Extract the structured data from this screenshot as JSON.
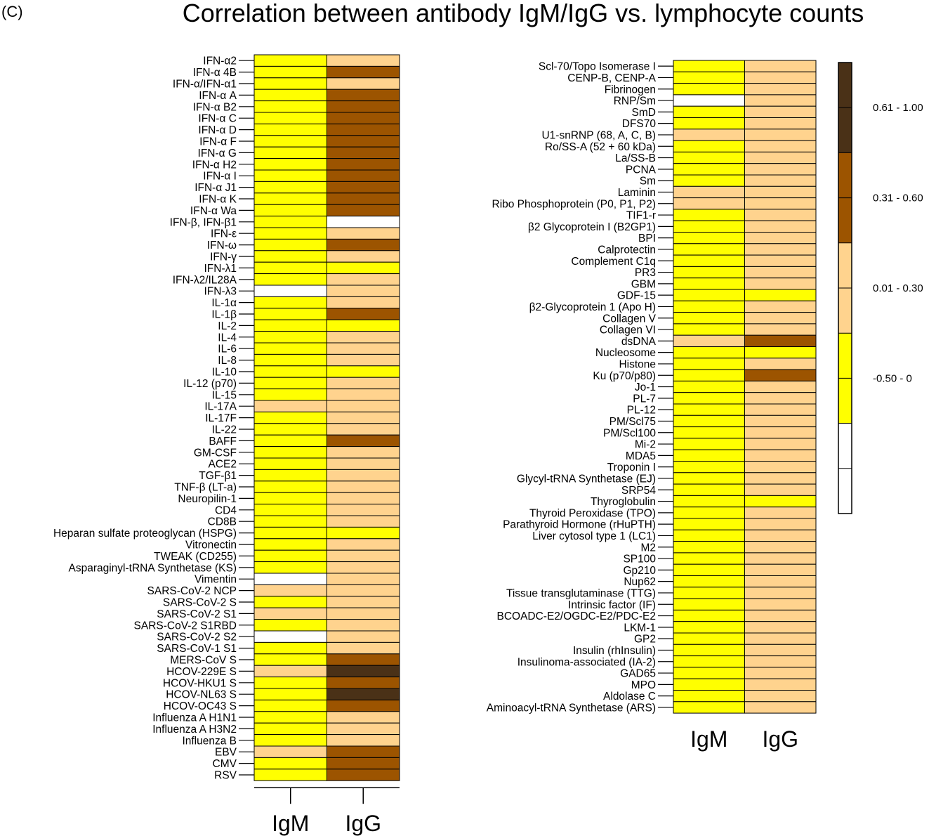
{
  "panel_label": "(C)",
  "title": "Correlation between antibody IgM/IgG vs. lymphocyte counts",
  "colors": {
    "neg": "#ffff00",
    "low": "#ffd38e",
    "mid": "#9c5400",
    "high": "#4a3117",
    "none": "#ffffff"
  },
  "chart_data": [
    {
      "type": "heatmap",
      "columns": [
        "IgM",
        "IgG"
      ],
      "categories": {
        "neg": "-0.50 - 0",
        "low": "0.01 - 0.30",
        "mid": "0.31 - 0.60",
        "high": "0.61 - 1.00",
        "none": ""
      },
      "rows": [
        {
          "label": "IFN-α2",
          "IgM": "neg",
          "IgG": "low"
        },
        {
          "label": "IFN-α 4B",
          "IgM": "neg",
          "IgG": "mid"
        },
        {
          "label": "IFN-α/IFN-α1",
          "IgM": "neg",
          "IgG": "low"
        },
        {
          "label": "IFN-α A",
          "IgM": "neg",
          "IgG": "mid"
        },
        {
          "label": "IFN-α B2",
          "IgM": "neg",
          "IgG": "mid"
        },
        {
          "label": "IFN-α C",
          "IgM": "neg",
          "IgG": "mid"
        },
        {
          "label": "IFN-α D",
          "IgM": "neg",
          "IgG": "mid"
        },
        {
          "label": "IFN-α F",
          "IgM": "neg",
          "IgG": "mid"
        },
        {
          "label": "IFN-α G",
          "IgM": "neg",
          "IgG": "mid"
        },
        {
          "label": "IFN-α H2",
          "IgM": "neg",
          "IgG": "mid"
        },
        {
          "label": "IFN-α I",
          "IgM": "neg",
          "IgG": "mid"
        },
        {
          "label": "IFN-α J1",
          "IgM": "neg",
          "IgG": "mid"
        },
        {
          "label": "IFN-α K",
          "IgM": "neg",
          "IgG": "mid"
        },
        {
          "label": "IFN-α Wa",
          "IgM": "neg",
          "IgG": "mid"
        },
        {
          "label": "IFN-β, IFN-β1",
          "IgM": "neg",
          "IgG": "none"
        },
        {
          "label": "IFN-ε",
          "IgM": "neg",
          "IgG": "low"
        },
        {
          "label": "IFN-ω",
          "IgM": "neg",
          "IgG": "mid"
        },
        {
          "label": "IFN-γ",
          "IgM": "neg",
          "IgG": "low"
        },
        {
          "label": "IFN-λ1",
          "IgM": "neg",
          "IgG": "neg"
        },
        {
          "label": "IFN-λ2/IL28A",
          "IgM": "neg",
          "IgG": "low"
        },
        {
          "label": "IFN-λ3",
          "IgM": "none",
          "IgG": "low"
        },
        {
          "label": "IL-1α",
          "IgM": "neg",
          "IgG": "low"
        },
        {
          "label": "IL-1β",
          "IgM": "neg",
          "IgG": "mid"
        },
        {
          "label": "IL-2",
          "IgM": "neg",
          "IgG": "neg"
        },
        {
          "label": "IL-4",
          "IgM": "neg",
          "IgG": "low"
        },
        {
          "label": "IL-6",
          "IgM": "neg",
          "IgG": "low"
        },
        {
          "label": "IL-8",
          "IgM": "neg",
          "IgG": "low"
        },
        {
          "label": "IL-10",
          "IgM": "neg",
          "IgG": "neg"
        },
        {
          "label": "IL-12 (p70)",
          "IgM": "neg",
          "IgG": "low"
        },
        {
          "label": "IL-15",
          "IgM": "neg",
          "IgG": "low"
        },
        {
          "label": "IL-17A",
          "IgM": "low",
          "IgG": "low"
        },
        {
          "label": "IL-17F",
          "IgM": "neg",
          "IgG": "low"
        },
        {
          "label": "IL-22",
          "IgM": "neg",
          "IgG": "low"
        },
        {
          "label": "BAFF",
          "IgM": "neg",
          "IgG": "mid"
        },
        {
          "label": "GM-CSF",
          "IgM": "neg",
          "IgG": "low"
        },
        {
          "label": "ACE2",
          "IgM": "neg",
          "IgG": "low"
        },
        {
          "label": "TGF-β1",
          "IgM": "neg",
          "IgG": "low"
        },
        {
          "label": "TNF-β (LT-a)",
          "IgM": "neg",
          "IgG": "low"
        },
        {
          "label": "Neuropilin-1",
          "IgM": "neg",
          "IgG": "low"
        },
        {
          "label": "CD4",
          "IgM": "neg",
          "IgG": "low"
        },
        {
          "label": "CD8B",
          "IgM": "neg",
          "IgG": "low"
        },
        {
          "label": "Heparan sulfate proteoglycan (HSPG)",
          "IgM": "neg",
          "IgG": "neg"
        },
        {
          "label": "Vitronectin",
          "IgM": "neg",
          "IgG": "low"
        },
        {
          "label": "TWEAK (CD255)",
          "IgM": "neg",
          "IgG": "low"
        },
        {
          "label": "Asparaginyl-tRNA Synthetase (KS)",
          "IgM": "neg",
          "IgG": "low"
        },
        {
          "label": "Vimentin",
          "IgM": "none",
          "IgG": "low"
        },
        {
          "label": "SARS-CoV-2 NCP",
          "IgM": "low",
          "IgG": "low"
        },
        {
          "label": "SARS-CoV-2 S",
          "IgM": "neg",
          "IgG": "low"
        },
        {
          "label": "SARS-CoV-2 S1",
          "IgM": "low",
          "IgG": "low"
        },
        {
          "label": "SARS-CoV-2 S1RBD",
          "IgM": "neg",
          "IgG": "low"
        },
        {
          "label": "SARS-CoV-2 S2",
          "IgM": "none",
          "IgG": "low"
        },
        {
          "label": "SARS-CoV-1 S1",
          "IgM": "neg",
          "IgG": "low"
        },
        {
          "label": "MERS-CoV S",
          "IgM": "neg",
          "IgG": "mid"
        },
        {
          "label": "HCOV-229E S",
          "IgM": "low",
          "IgG": "high"
        },
        {
          "label": "HCOV-HKU1 S",
          "IgM": "neg",
          "IgG": "mid"
        },
        {
          "label": "HCOV-NL63 S",
          "IgM": "neg",
          "IgG": "high"
        },
        {
          "label": "HCOV-OC43 S",
          "IgM": "neg",
          "IgG": "mid"
        },
        {
          "label": "Influenza A H1N1",
          "IgM": "neg",
          "IgG": "low"
        },
        {
          "label": "Influenza A H3N2",
          "IgM": "neg",
          "IgG": "low"
        },
        {
          "label": "Influenza B",
          "IgM": "neg",
          "IgG": "low"
        },
        {
          "label": "EBV",
          "IgM": "low",
          "IgG": "mid"
        },
        {
          "label": "CMV",
          "IgM": "neg",
          "IgG": "mid"
        },
        {
          "label": "RSV",
          "IgM": "neg",
          "IgG": "mid"
        }
      ]
    },
    {
      "type": "heatmap",
      "columns": [
        "IgM",
        "IgG"
      ],
      "rows": [
        {
          "label": "Scl-70/Topo Isomerase I",
          "IgM": "neg",
          "IgG": "low"
        },
        {
          "label": "CENP-B, CENP-A",
          "IgM": "neg",
          "IgG": "low"
        },
        {
          "label": "Fibrinogen",
          "IgM": "neg",
          "IgG": "low"
        },
        {
          "label": "RNP/Sm",
          "IgM": "none",
          "IgG": "low"
        },
        {
          "label": "SmD",
          "IgM": "neg",
          "IgG": "low"
        },
        {
          "label": "DFS70",
          "IgM": "neg",
          "IgG": "low"
        },
        {
          "label": "U1-snRNP (68, A, C, B)",
          "IgM": "low",
          "IgG": "low"
        },
        {
          "label": "Ro/SS-A (52 + 60 kDa)",
          "IgM": "neg",
          "IgG": "low"
        },
        {
          "label": "La/SS-B",
          "IgM": "neg",
          "IgG": "low"
        },
        {
          "label": "PCNA",
          "IgM": "neg",
          "IgG": "low"
        },
        {
          "label": "Sm",
          "IgM": "neg",
          "IgG": "low"
        },
        {
          "label": "Laminin",
          "IgM": "low",
          "IgG": "low"
        },
        {
          "label": "Ribo Phosphoprotein (P0, P1, P2)",
          "IgM": "low",
          "IgG": "low"
        },
        {
          "label": "TIF1-r",
          "IgM": "neg",
          "IgG": "low"
        },
        {
          "label": "β2 Glycoprotein I (B2GP1)",
          "IgM": "neg",
          "IgG": "low"
        },
        {
          "label": "BPI",
          "IgM": "neg",
          "IgG": "low"
        },
        {
          "label": "Calprotectin",
          "IgM": "neg",
          "IgG": "low"
        },
        {
          "label": "Complement C1q",
          "IgM": "neg",
          "IgG": "low"
        },
        {
          "label": "PR3",
          "IgM": "neg",
          "IgG": "low"
        },
        {
          "label": "GBM",
          "IgM": "neg",
          "IgG": "low"
        },
        {
          "label": "GDF-15",
          "IgM": "neg",
          "IgG": "neg"
        },
        {
          "label": "β2-Glycoprotein 1 (Apo H)",
          "IgM": "neg",
          "IgG": "low"
        },
        {
          "label": "Collagen V",
          "IgM": "neg",
          "IgG": "low"
        },
        {
          "label": "Collagen VI",
          "IgM": "neg",
          "IgG": "low"
        },
        {
          "label": "dsDNA",
          "IgM": "low",
          "IgG": "mid"
        },
        {
          "label": "Nucleosome",
          "IgM": "neg",
          "IgG": "neg"
        },
        {
          "label": "Histone",
          "IgM": "neg",
          "IgG": "low"
        },
        {
          "label": "Ku (p70/p80)",
          "IgM": "neg",
          "IgG": "mid"
        },
        {
          "label": "Jo-1",
          "IgM": "neg",
          "IgG": "low"
        },
        {
          "label": "PL-7",
          "IgM": "neg",
          "IgG": "low"
        },
        {
          "label": "PL-12",
          "IgM": "neg",
          "IgG": "low"
        },
        {
          "label": "PM/Scl75",
          "IgM": "neg",
          "IgG": "low"
        },
        {
          "label": "PM/Scl100",
          "IgM": "neg",
          "IgG": "low"
        },
        {
          "label": "Mi-2",
          "IgM": "neg",
          "IgG": "low"
        },
        {
          "label": "MDA5",
          "IgM": "neg",
          "IgG": "low"
        },
        {
          "label": "Troponin I",
          "IgM": "neg",
          "IgG": "low"
        },
        {
          "label": "Glycyl-tRNA Synthetase (EJ)",
          "IgM": "neg",
          "IgG": "low"
        },
        {
          "label": "SRP54",
          "IgM": "neg",
          "IgG": "low"
        },
        {
          "label": "Thyroglobulin",
          "IgM": "neg",
          "IgG": "neg"
        },
        {
          "label": "Thyroid Peroxidase (TPO)",
          "IgM": "neg",
          "IgG": "low"
        },
        {
          "label": "Parathyroid Hormone (rHuPTH)",
          "IgM": "neg",
          "IgG": "low"
        },
        {
          "label": "Liver cytosol type 1 (LC1)",
          "IgM": "neg",
          "IgG": "low"
        },
        {
          "label": "M2",
          "IgM": "neg",
          "IgG": "low"
        },
        {
          "label": "SP100",
          "IgM": "neg",
          "IgG": "low"
        },
        {
          "label": "Gp210",
          "IgM": "neg",
          "IgG": "low"
        },
        {
          "label": "Nup62",
          "IgM": "neg",
          "IgG": "low"
        },
        {
          "label": "Tissue transglutaminase (TTG)",
          "IgM": "neg",
          "IgG": "low"
        },
        {
          "label": "Intrinsic factor (IF)",
          "IgM": "neg",
          "IgG": "low"
        },
        {
          "label": "BCOADC-E2/OGDC-E2/PDC-E2",
          "IgM": "neg",
          "IgG": "low"
        },
        {
          "label": "LKM-1",
          "IgM": "neg",
          "IgG": "low"
        },
        {
          "label": "GP2",
          "IgM": "neg",
          "IgG": "low"
        },
        {
          "label": "Insulin (rhInsulin)",
          "IgM": "neg",
          "IgG": "low"
        },
        {
          "label": "Insulinoma-associated (IA-2)",
          "IgM": "neg",
          "IgG": "low"
        },
        {
          "label": "GAD65",
          "IgM": "neg",
          "IgG": "low"
        },
        {
          "label": "MPO",
          "IgM": "neg",
          "IgG": "low"
        },
        {
          "label": "Aldolase C",
          "IgM": "neg",
          "IgG": "low"
        },
        {
          "label": "Aminoacyl-tRNA Synthetase (ARS)",
          "IgM": "neg",
          "IgG": "low"
        }
      ]
    }
  ],
  "legend": [
    {
      "label": "0.61 - 1.00",
      "color_key": "high"
    },
    {
      "label": "0.31 - 0.60",
      "color_key": "mid"
    },
    {
      "label": "0.01 - 0.30",
      "color_key": "low"
    },
    {
      "label": "-0.50 - 0",
      "color_key": "neg"
    },
    {
      "label": "",
      "color_key": "none"
    }
  ]
}
